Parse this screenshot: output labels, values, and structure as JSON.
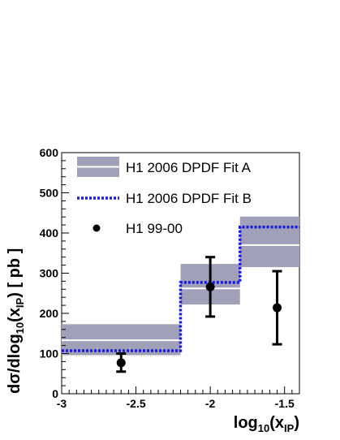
{
  "chart_data": {
    "type": "step",
    "xlabel": {
      "base": "log",
      "base_sub": "10",
      "main": "(x",
      "main_sub": "IP",
      "end": ")"
    },
    "ylabel": {
      "base": "dσ/dlog",
      "base_sub": "10",
      "main": "(x",
      "main_sub": "IP",
      "end": ") [ pb ]"
    },
    "xlim": [
      -3.0,
      -1.4
    ],
    "ylim": [
      0,
      600
    ],
    "x_ticks": [
      -3,
      -2.5,
      -2,
      -1.5
    ],
    "x_tick_labels": [
      "-3",
      "-2.5",
      "-2",
      "-1.5"
    ],
    "y_ticks": [
      0,
      100,
      200,
      300,
      400,
      500,
      600
    ],
    "y_tick_labels": [
      "0",
      "100",
      "200",
      "300",
      "400",
      "500",
      "600"
    ],
    "bins": [
      [
        -3.0,
        -2.2
      ],
      [
        -2.2,
        -1.8
      ],
      [
        -1.8,
        -1.4
      ]
    ],
    "fit_a": {
      "name": "H1 2006 DPDF Fit A",
      "central": [
        133,
        262,
        370
      ],
      "band_low": [
        96,
        222,
        315
      ],
      "band_high": [
        173,
        323,
        441
      ],
      "band_color": "#a0a0b8",
      "line_color": "#ffffff"
    },
    "fit_b": {
      "name": "H1 2006 DPDF Fit B",
      "values": [
        107,
        277,
        415
      ],
      "color": "#1a1adc"
    },
    "data": {
      "name": "H1 99-00",
      "x": [
        -2.6,
        -2.0,
        -1.55
      ],
      "y": [
        77,
        266,
        214
      ],
      "err_low": [
        55,
        192,
        123
      ],
      "err_high": [
        100,
        340,
        305
      ],
      "color": "#000000"
    },
    "legend_position": "top-left"
  }
}
